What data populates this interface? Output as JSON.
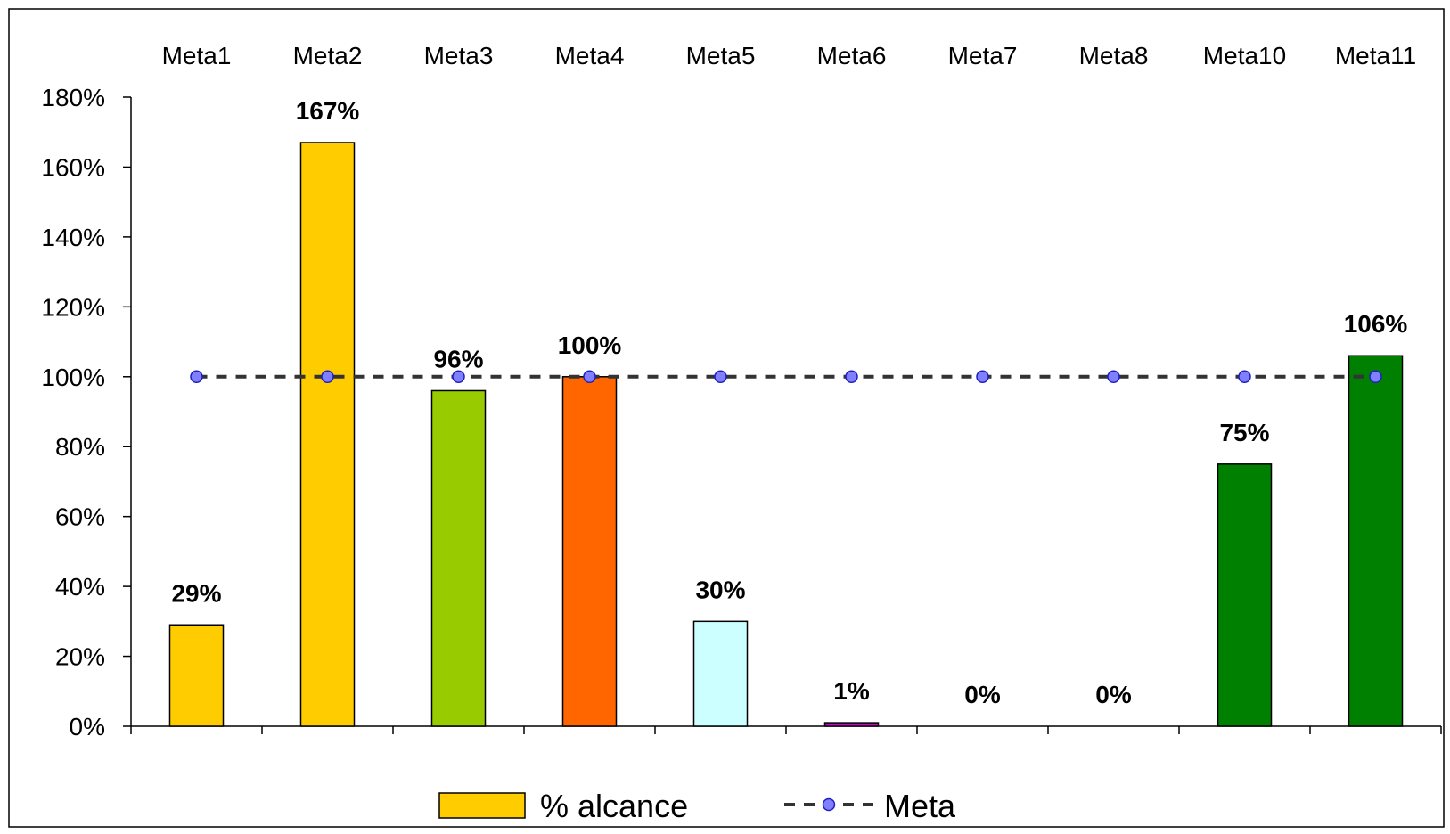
{
  "chart_data": {
    "type": "bar",
    "categories": [
      "Meta1",
      "Meta2",
      "Meta3",
      "Meta4",
      "Meta5",
      "Meta6",
      "Meta7",
      "Meta8",
      "Meta10",
      "Meta11"
    ],
    "series": [
      {
        "name": "% alcance",
        "kind": "bar",
        "values": [
          29,
          167,
          96,
          100,
          30,
          1,
          0,
          0,
          75,
          106
        ],
        "data_labels": [
          "29%",
          "167%",
          "96%",
          "100%",
          "30%",
          "1%",
          "0%",
          "0%",
          "75%",
          "106%"
        ],
        "colors": [
          "#FFCC00",
          "#FFCC00",
          "#99CC00",
          "#FF6600",
          "#CCFFFF",
          "#CC00CC",
          "#FFCC00",
          "#FFCC00",
          "#008000",
          "#008000"
        ]
      },
      {
        "name": "Meta",
        "kind": "line",
        "style": "dashed",
        "marker_color": "#8080FF",
        "line_color": "#333333",
        "values": [
          100,
          100,
          100,
          100,
          100,
          100,
          100,
          100,
          100,
          100
        ]
      }
    ],
    "y_ticks": [
      "0%",
      "20%",
      "40%",
      "60%",
      "80%",
      "100%",
      "120%",
      "140%",
      "160%",
      "180%"
    ],
    "ylim": [
      0,
      180
    ],
    "y_step": 20,
    "category_axis_position": "top",
    "grid": false,
    "legend_position": "bottom",
    "xlabel": "",
    "ylabel": "",
    "title": ""
  }
}
